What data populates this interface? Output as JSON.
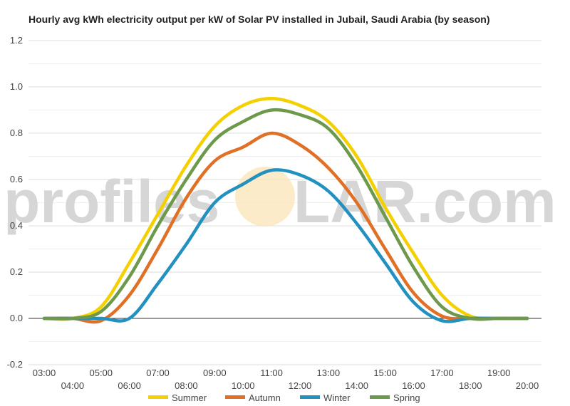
{
  "chart_data": {
    "type": "line",
    "title": "Hourly avg kWh electricity output per kW of Solar PV installed in Jubail, Saudi Arabia (by season)",
    "xlabel": "",
    "ylabel": "",
    "x": [
      "03:00",
      "04:00",
      "05:00",
      "06:00",
      "07:00",
      "08:00",
      "09:00",
      "10:00",
      "11:00",
      "12:00",
      "13:00",
      "14:00",
      "15:00",
      "16:00",
      "17:00",
      "18:00",
      "19:00",
      "20:00"
    ],
    "ylim": [
      -0.2,
      1.2
    ],
    "yticks": [
      "-0.2",
      "0.0",
      "0.2",
      "0.4",
      "0.6",
      "0.8",
      "1.0",
      "1.2"
    ],
    "grid": true,
    "legend_position": "bottom",
    "series": [
      {
        "name": "Summer",
        "color": "#f5d000",
        "values": [
          0,
          0,
          0.05,
          0.24,
          0.45,
          0.66,
          0.83,
          0.92,
          0.95,
          0.92,
          0.85,
          0.7,
          0.48,
          0.28,
          0.1,
          0.01,
          0,
          0
        ]
      },
      {
        "name": "Autumn",
        "color": "#e07026",
        "values": [
          0,
          0,
          -0.01,
          0.1,
          0.3,
          0.52,
          0.68,
          0.74,
          0.8,
          0.75,
          0.65,
          0.5,
          0.3,
          0.11,
          0.01,
          0,
          0,
          0
        ]
      },
      {
        "name": "Winter",
        "color": "#2291c0",
        "values": [
          0,
          0,
          0,
          0,
          0.15,
          0.32,
          0.5,
          0.58,
          0.64,
          0.62,
          0.55,
          0.41,
          0.24,
          0.07,
          -0.01,
          0,
          0,
          0
        ]
      },
      {
        "name": "Spring",
        "color": "#6d994d",
        "values": [
          0,
          0,
          0.03,
          0.18,
          0.4,
          0.6,
          0.77,
          0.85,
          0.9,
          0.88,
          0.82,
          0.66,
          0.44,
          0.22,
          0.05,
          0,
          0,
          0
        ]
      }
    ]
  },
  "watermark": {
    "text_before": "profiles",
    "text_after": "LAR.com",
    "sun_color": "#fbe4b5"
  }
}
